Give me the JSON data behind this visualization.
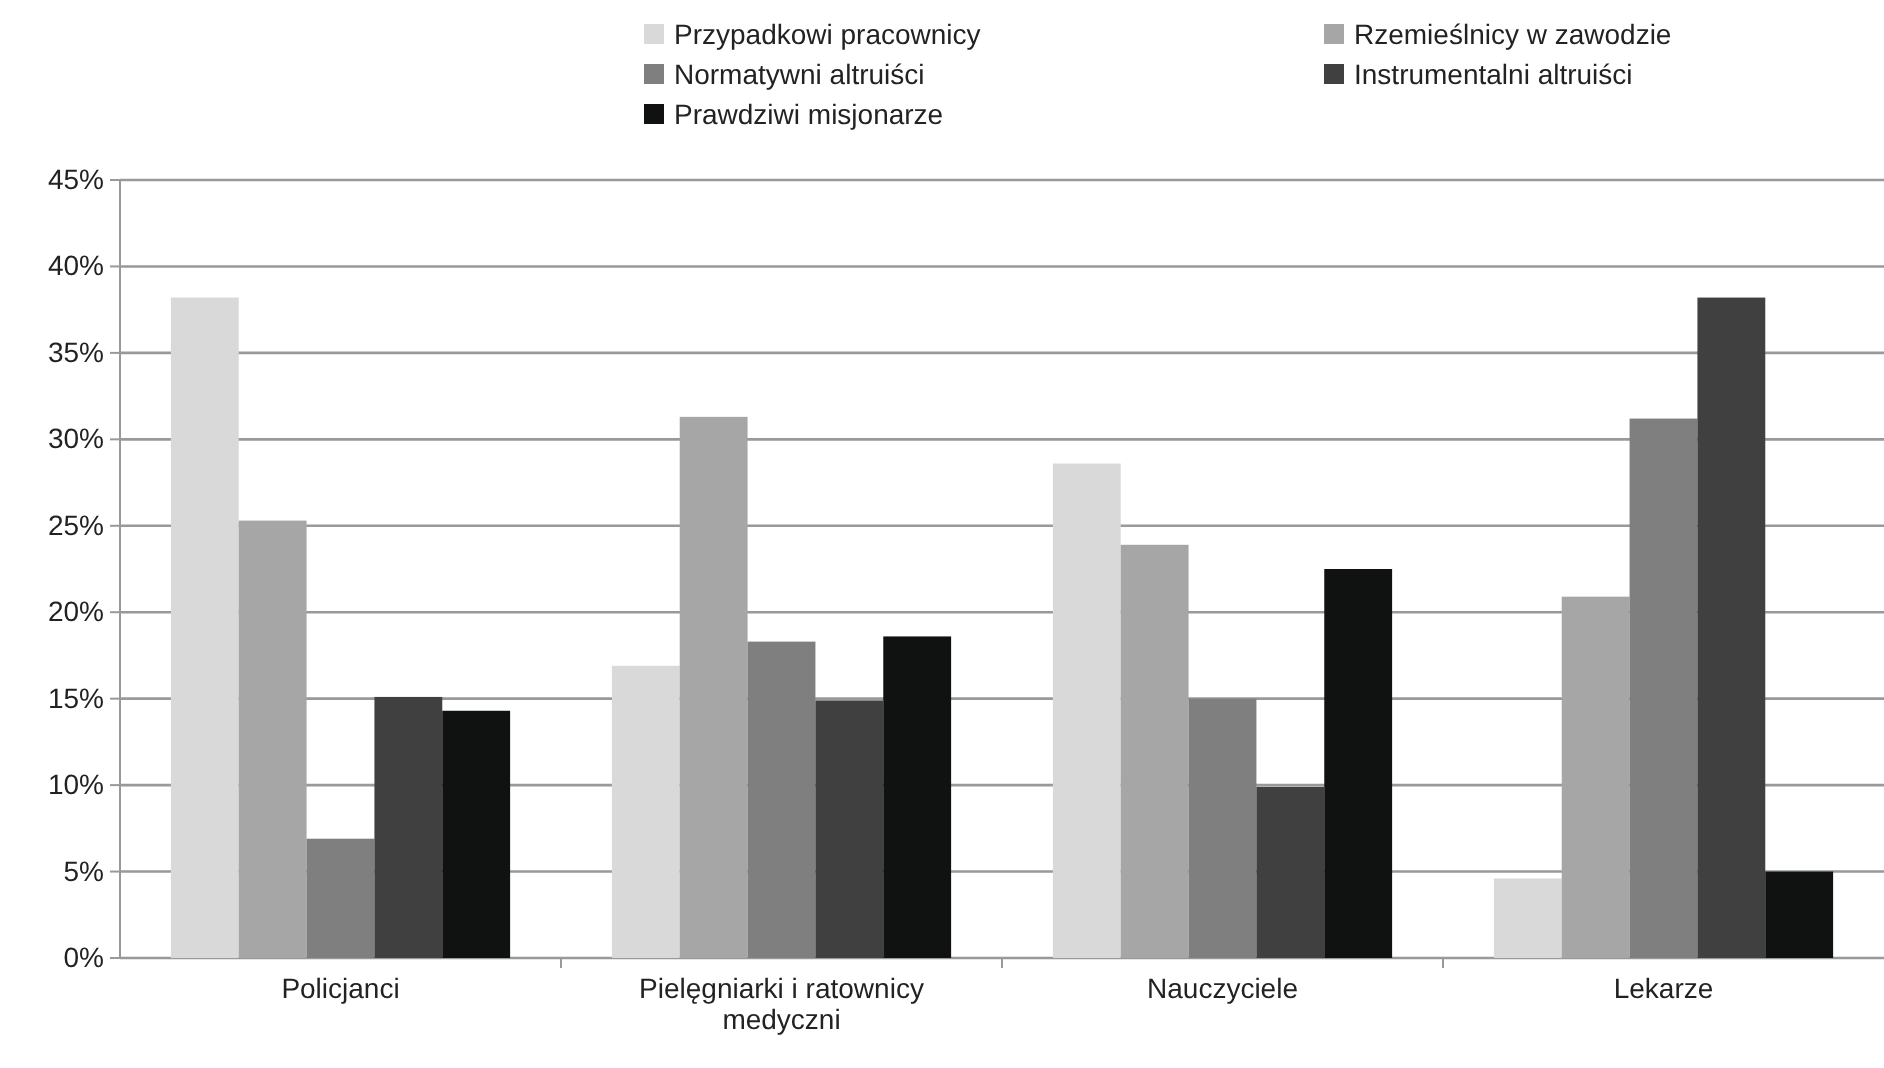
{
  "chart_data": {
    "type": "bar",
    "categories": [
      "Policjanci",
      "Pielęgniarki  i ratownicy medyczni",
      "Nauczyciele",
      "Lekarze"
    ],
    "series": [
      {
        "name": "Przypadkowi pracownicy",
        "color": "#d9d9d9",
        "values": [
          38.2,
          16.9,
          28.6,
          4.6
        ]
      },
      {
        "name": "Rzemieślnicy w zawodzie",
        "color": "#a6a6a6",
        "values": [
          25.3,
          31.3,
          23.9,
          20.9
        ]
      },
      {
        "name": "Normatywni altruiści",
        "color": "#7f7f7f",
        "values": [
          6.9,
          18.3,
          15.0,
          31.2
        ]
      },
      {
        "name": "Instrumentalni altruiści",
        "color": "#404040",
        "values": [
          15.1,
          14.9,
          9.9,
          38.2
        ]
      },
      {
        "name": "Prawdziwi misjonarze",
        "color": "#101211",
        "values": [
          14.3,
          18.6,
          22.5,
          5.0
        ]
      }
    ],
    "ylim": [
      0,
      45
    ],
    "yticks": [
      {
        "value": 0,
        "label": "0%"
      },
      {
        "value": 5,
        "label": "5%"
      },
      {
        "value": 10,
        "label": "10%"
      },
      {
        "value": 15,
        "label": "15%"
      },
      {
        "value": 20,
        "label": "20%"
      },
      {
        "value": 25,
        "label": "25%"
      },
      {
        "value": 30,
        "label": "30%"
      },
      {
        "value": 35,
        "label": "35%"
      },
      {
        "value": 40,
        "label": "40%"
      },
      {
        "value": 45,
        "label": "45%"
      }
    ],
    "grid": "y",
    "legend": "top"
  }
}
